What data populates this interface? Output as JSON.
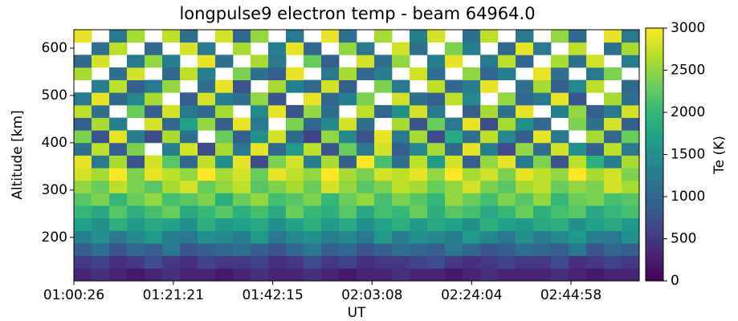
{
  "chart_data": {
    "type": "heatmap",
    "title": "longpulse9 electron temp  - beam 64964.0",
    "x_label": "UT",
    "y_label": "Altitude [km]",
    "colorbar_label": "Te (K)",
    "colormap": "viridis",
    "xlim": [
      3626,
      10759
    ],
    "xticks": [
      {
        "value": 3626,
        "label": "01:00:26"
      },
      {
        "value": 4881,
        "label": "01:21:21"
      },
      {
        "value": 6135,
        "label": "01:42:15"
      },
      {
        "value": 7388,
        "label": "02:03:08"
      },
      {
        "value": 8644,
        "label": "02:24:04"
      },
      {
        "value": 9898,
        "label": "02:44:58"
      }
    ],
    "ylim": [
      108,
      639
    ],
    "yticks": [
      200,
      300,
      400,
      500,
      600
    ],
    "clim": [
      0,
      3000
    ],
    "cticks": [
      0,
      500,
      1000,
      1500,
      2000,
      2500,
      3000
    ],
    "z": [
      [
        300,
        400,
        300,
        200,
        300,
        400,
        300,
        300,
        200,
        300,
        400,
        300,
        300,
        400,
        300,
        200,
        300,
        300,
        400,
        300,
        300,
        200,
        300,
        400,
        300,
        300,
        300,
        400,
        300,
        200,
        300,
        300
      ],
      [
        500,
        600,
        400,
        500,
        700,
        500,
        400,
        600,
        500,
        500,
        600,
        400,
        500,
        700,
        500,
        600,
        400,
        500,
        500,
        600,
        700,
        500,
        400,
        500,
        600,
        500,
        500,
        700,
        400,
        500,
        600,
        500
      ],
      [
        900,
        1100,
        800,
        1000,
        900,
        1200,
        800,
        900,
        1000,
        1100,
        900,
        800,
        1000,
        1200,
        900,
        1000,
        800,
        900,
        1100,
        1000,
        900,
        1200,
        1000,
        800,
        900,
        1100,
        1000,
        900,
        1200,
        800,
        1000,
        900
      ],
      [
        1300,
        1500,
        1200,
        1400,
        1600,
        1300,
        1200,
        1500,
        1400,
        1300,
        1600,
        1200,
        1400,
        1500,
        1300,
        1400,
        1200,
        1600,
        1300,
        1500,
        1400,
        1300,
        1600,
        1400,
        1200,
        1500,
        1300,
        1400,
        1600,
        1300,
        1200,
        1500
      ],
      [
        1700,
        1500,
        1900,
        1600,
        1800,
        1700,
        1500,
        1900,
        1600,
        1700,
        1800,
        1500,
        1700,
        1900,
        1600,
        1800,
        1500,
        1700,
        1900,
        1600,
        1800,
        1700,
        1500,
        1900,
        1700,
        1600,
        1800,
        1900,
        1500,
        1700,
        1800,
        1600
      ],
      [
        2000,
        1800,
        2200,
        1900,
        2100,
        2300,
        1800,
        2000,
        2200,
        1900,
        2100,
        1800,
        2300,
        2000,
        1900,
        2200,
        1800,
        2100,
        2000,
        2300,
        1900,
        2200,
        2100,
        1800,
        2000,
        2300,
        1900,
        2100,
        2200,
        1800,
        2000,
        2100
      ],
      [
        2200,
        2400,
        2000,
        2300,
        2500,
        2100,
        2200,
        2400,
        1900,
        2300,
        2500,
        2100,
        2200,
        2400,
        2000,
        2300,
        2500,
        2100,
        2400,
        2200,
        2000,
        2500,
        2300,
        2100,
        2400,
        2200,
        2500,
        2000,
        2300,
        2400,
        2100,
        2200
      ],
      [
        2500,
        2300,
        2700,
        2400,
        2200,
        2600,
        2800,
        2300,
        2500,
        2700,
        2200,
        2400,
        2600,
        2300,
        2800,
        2500,
        2200,
        2400,
        2700,
        2600,
        2300,
        2500,
        2800,
        2400,
        2200,
        2600,
        2700,
        2300,
        2500,
        2400,
        2800,
        2600
      ],
      [
        2800,
        2600,
        3000,
        2400,
        2900,
        2700,
        2500,
        3000,
        2600,
        2800,
        2300,
        2900,
        2700,
        2500,
        3000,
        2600,
        2400,
        2800,
        2700,
        2900,
        2500,
        3000,
        2600,
        2800,
        2400,
        2900,
        2700,
        2500,
        3000,
        2600,
        2800,
        2400
      ],
      [
        2900,
        1200,
        2600,
        800,
        2800,
        2200,
        1000,
        2700,
        1500,
        2900,
        700,
        2400,
        2800,
        1300,
        2600,
        900,
        3000,
        2100,
        1100,
        2700,
        1600,
        2800,
        900,
        2500,
        2900,
        1200,
        2400,
        800,
        2700,
        1900,
        1300,
        2600
      ],
      [
        1100,
        2700,
        900,
        2400,
        null,
        1300,
        2800,
        700,
        2600,
        1200,
        2900,
        1000,
        1600,
        2700,
        800,
        2300,
        1200,
        2800,
        900,
        1400,
        2600,
        1000,
        2900,
        1300,
        700,
        2500,
        1100,
        2800,
        1500,
        900,
        2700,
        1200
      ],
      [
        2400,
        800,
        2900,
        1300,
        700,
        2600,
        1100,
        null,
        2300,
        900,
        1500,
        2800,
        1000,
        600,
        2500,
        1400,
        800,
        2900,
        1200,
        2600,
        700,
        1800,
        1100,
        2700,
        1400,
        900,
        2900,
        1200,
        null,
        2600,
        1000,
        2300
      ],
      [
        900,
        2600,
        1300,
        null,
        2800,
        1000,
        1700,
        2500,
        900,
        2900,
        1200,
        null,
        2400,
        1000,
        1400,
        2800,
        1100,
        null,
        2600,
        800,
        2300,
        1200,
        2900,
        700,
        2600,
        1500,
        1000,
        null,
        2400,
        1100,
        2800,
        900
      ],
      [
        2700,
        1100,
        null,
        2300,
        900,
        2800,
        1200,
        1000,
        2600,
        null,
        1400,
        2900,
        800,
        2500,
        1100,
        null,
        2700,
        1000,
        1500,
        2800,
        1200,
        null,
        900,
        2600,
        1100,
        2900,
        null,
        1300,
        2500,
        900,
        1200,
        2800
      ],
      [
        1200,
        2900,
        1000,
        1400,
        2600,
        null,
        900,
        2800,
        1300,
        1100,
        2500,
        800,
        null,
        2900,
        1000,
        1300,
        2400,
        null,
        2800,
        1100,
        900,
        2700,
        1400,
        null,
        2500,
        1000,
        1200,
        2900,
        800,
        null,
        2600,
        1100
      ],
      [
        null,
        1300,
        2700,
        900,
        1200,
        2500,
        null,
        1100,
        2900,
        800,
        null,
        2600,
        1300,
        1000,
        2800,
        900,
        null,
        2400,
        1200,
        null,
        2700,
        1000,
        1300,
        2900,
        null,
        1100,
        2600,
        900,
        1400,
        2700,
        null,
        1000
      ],
      [
        2600,
        null,
        1100,
        2800,
        null,
        1000,
        2700,
        1300,
        null,
        2400,
        1100,
        900,
        2900,
        null,
        1200,
        2600,
        1000,
        1300,
        null,
        2800,
        1100,
        null,
        2500,
        1000,
        1300,
        null,
        2900,
        1100,
        null,
        1200,
        2400,
        null
      ],
      [
        1000,
        2800,
        null,
        1200,
        2500,
        1300,
        null,
        2900,
        1100,
        null,
        2600,
        1200,
        null,
        2300,
        900,
        null,
        2800,
        1100,
        2500,
        null,
        1300,
        2900,
        null,
        1200,
        2700,
        1000,
        null,
        2600,
        1100,
        2800,
        null,
        1300
      ],
      [
        null,
        1100,
        2700,
        null,
        1000,
        null,
        2800,
        1200,
        null,
        2600,
        null,
        1300,
        2900,
        1000,
        null,
        2500,
        1200,
        null,
        2800,
        1100,
        null,
        2400,
        1300,
        null,
        1000,
        2900,
        1200,
        null,
        2700,
        null,
        1100,
        2600
      ],
      [
        2900,
        null,
        1200,
        2600,
        null,
        2700,
        1100,
        null,
        2800,
        1000,
        2500,
        null,
        1200,
        null,
        2900,
        1100,
        null,
        2600,
        null,
        1300,
        2800,
        null,
        1100,
        2700,
        null,
        1200,
        null,
        2500,
        1000,
        null,
        2900,
        1200
      ]
    ]
  }
}
